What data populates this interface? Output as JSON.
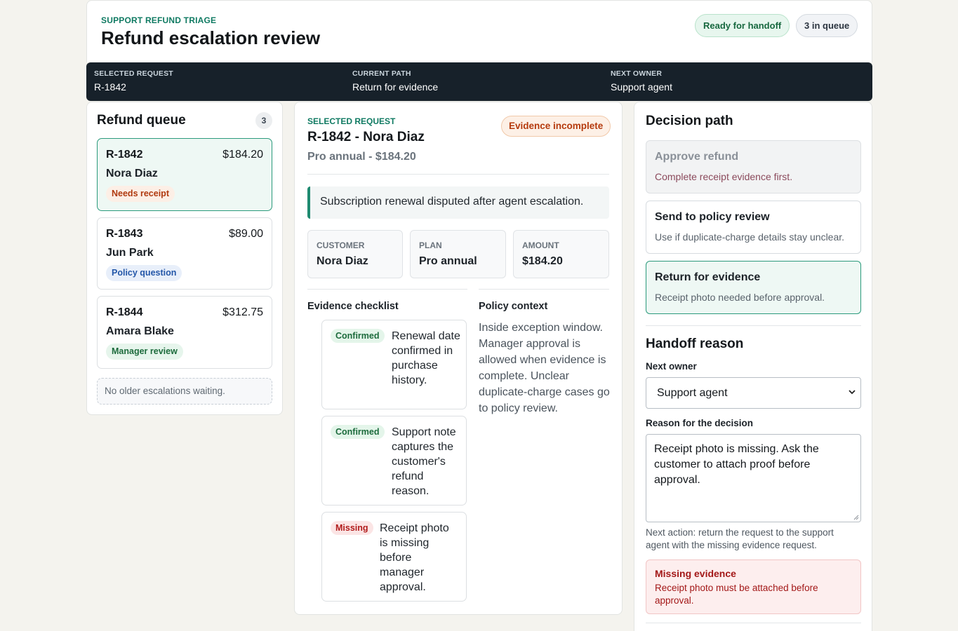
{
  "header": {
    "eyebrow": "SUPPORT REFUND TRIAGE",
    "title": "Refund escalation review",
    "status_pill": "Ready for handoff",
    "queue_pill": "3 in queue"
  },
  "summary_bar": {
    "selected_label": "SELECTED REQUEST",
    "selected_value": "R-1842",
    "path_label": "CURRENT PATH",
    "path_value": "Return for evidence",
    "owner_label": "NEXT OWNER",
    "owner_value": "Support agent"
  },
  "queue": {
    "title": "Refund queue",
    "count": "3",
    "items": [
      {
        "id": "R-1842",
        "amount": "$184.20",
        "name": "Nora Diaz",
        "tag": "Needs receipt"
      },
      {
        "id": "R-1843",
        "amount": "$89.00",
        "name": "Jun Park",
        "tag": "Policy question"
      },
      {
        "id": "R-1844",
        "amount": "$312.75",
        "name": "Amara Blake",
        "tag": "Manager review"
      }
    ],
    "empty_note": "No older escalations waiting."
  },
  "detail": {
    "eyebrow": "SELECTED REQUEST",
    "title": "R-1842 - Nora Diaz",
    "subtitle": "Pro annual - $184.20",
    "badge": "Evidence incomplete",
    "summary": "Subscription renewal disputed after agent escalation.",
    "stats": [
      {
        "label": "CUSTOMER",
        "value": "Nora Diaz"
      },
      {
        "label": "PLAN",
        "value": "Pro annual"
      },
      {
        "label": "AMOUNT",
        "value": "$184.20"
      }
    ],
    "checklist_title": "Evidence checklist",
    "checklist": [
      {
        "status": "Confirmed",
        "text": "Renewal date confirmed in purchase history."
      },
      {
        "status": "Confirmed",
        "text": "Support note captures the customer's refund reason."
      },
      {
        "status": "Missing",
        "text": "Receipt photo is missing before manager approval."
      }
    ],
    "policy_title": "Policy context",
    "policy_text": "Inside exception window. Manager approval is allowed when evidence is complete. Unclear duplicate-charge cases go to policy review."
  },
  "decision": {
    "title": "Decision path",
    "options": [
      {
        "title": "Approve refund",
        "desc": "Complete receipt evidence first."
      },
      {
        "title": "Send to policy review",
        "desc": "Use if duplicate-charge details stay unclear."
      },
      {
        "title": "Return for evidence",
        "desc": "Receipt photo needed before approval."
      }
    ],
    "handoff_title": "Handoff reason",
    "owner_label": "Next owner",
    "owner_value": "Support agent",
    "reason_label": "Reason for the decision",
    "reason_value": "Receipt photo is missing. Ask the customer to attach proof before approval.",
    "hint": "Next action: return the request to the support agent with the missing evidence request.",
    "alert_title": "Missing evidence",
    "alert_text": "Receipt photo must be attached before approval."
  },
  "colors": {
    "accent": "#0f7a62",
    "dark_bar": "#17212a",
    "alert": "#a31818"
  }
}
